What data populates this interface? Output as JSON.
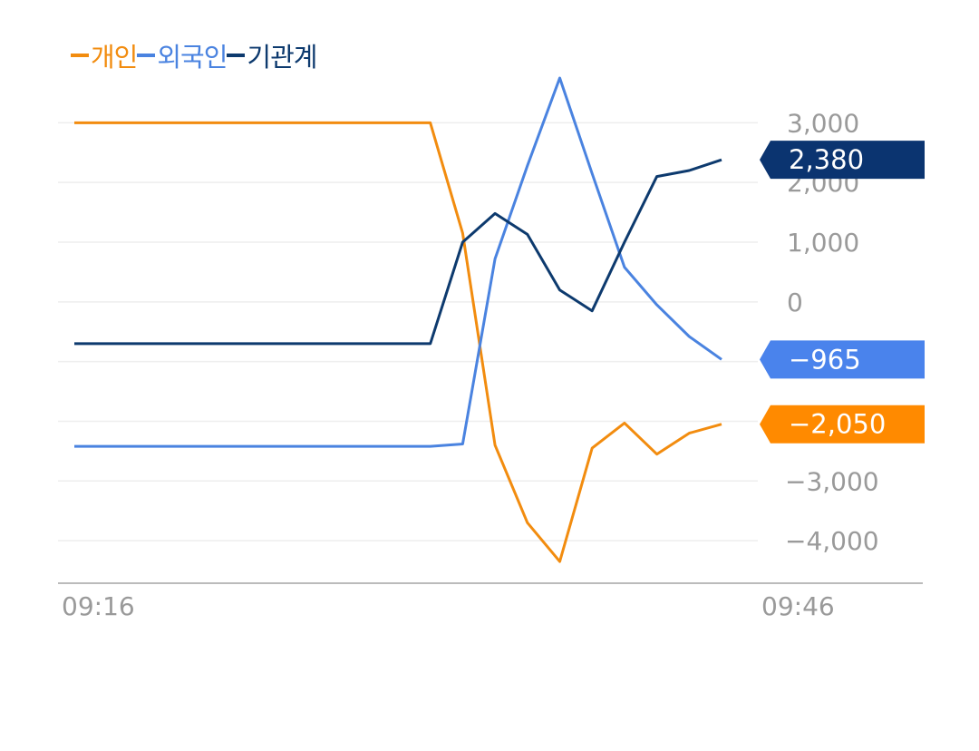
{
  "chart_data": {
    "type": "line",
    "x_labels": [
      "09:16",
      "09:46"
    ],
    "y_ticks": [
      3000,
      2000,
      1000,
      0,
      -1000,
      -2000,
      -3000,
      -4000
    ],
    "y_tick_labels": [
      "3,000",
      "2,000",
      "1,000",
      "0",
      "",
      "",
      "-3,000",
      "-4,000"
    ],
    "ylim": [
      -4500,
      3750
    ],
    "series": [
      {
        "name": "개인",
        "color": "#f28c0f",
        "last_label": "-2,050",
        "values": [
          3000,
          3000,
          3000,
          3000,
          3000,
          3000,
          3000,
          3000,
          3000,
          3000,
          3000,
          3000,
          1150,
          -2400,
          -3700,
          -4350,
          -2450,
          -2030,
          -2550,
          -2200,
          -2050
        ]
      },
      {
        "name": "외국인",
        "color": "#4a83e0",
        "last_label": "-965",
        "values": [
          -2420,
          -2420,
          -2420,
          -2420,
          -2420,
          -2420,
          -2420,
          -2420,
          -2420,
          -2420,
          -2420,
          -2420,
          -2380,
          720,
          2280,
          3750,
          2150,
          580,
          -50,
          -580,
          -965
        ]
      },
      {
        "name": "기관계",
        "color": "#0d3a6e",
        "last_label": "2,380",
        "values": [
          -700,
          -700,
          -700,
          -700,
          -700,
          -700,
          -700,
          -700,
          -700,
          -700,
          -700,
          -700,
          1000,
          1480,
          1130,
          200,
          -150,
          1000,
          2100,
          2200,
          2380
        ]
      }
    ]
  },
  "badge_colors": {
    "개인": "#ff8a00",
    "외국인": "#4a83ec",
    "기관계": "#0b3470"
  },
  "axis_color": "#bbbbbb",
  "grid_color": "#eeeeee"
}
